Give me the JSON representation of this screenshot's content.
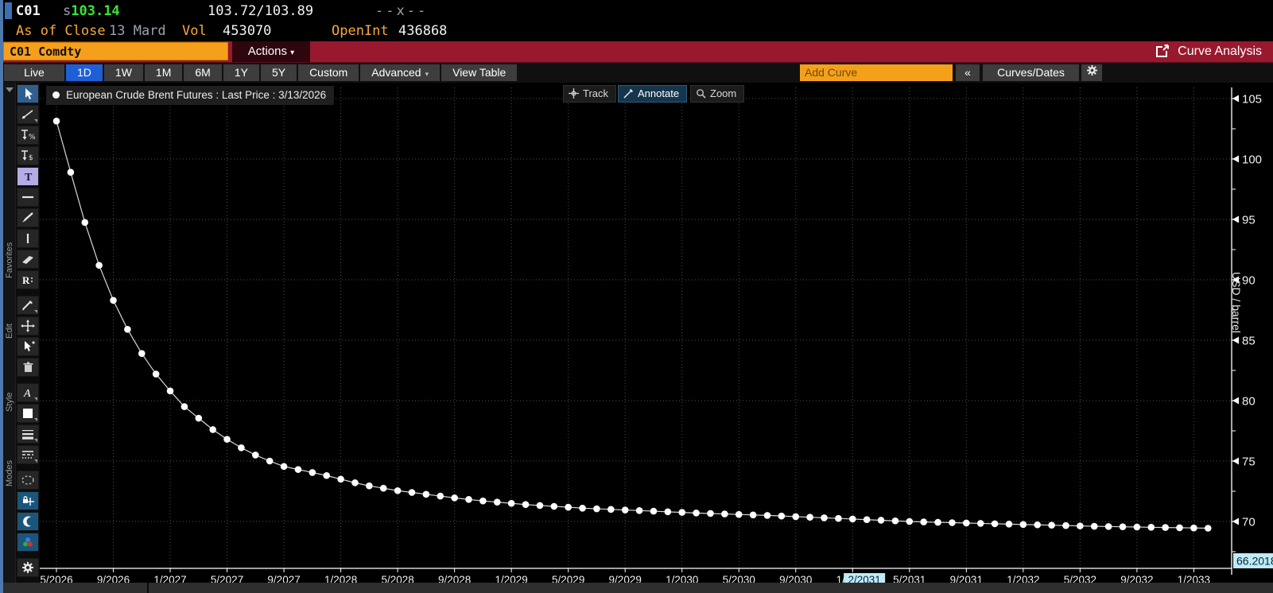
{
  "top_bar": {
    "ticker": "C01",
    "settle_prefix": "s",
    "last_price": "103.14",
    "bid_ask": "103.72/103.89",
    "cross": "--x--",
    "as_of_label": "As of Close",
    "as_of_date": "13 Mard",
    "vol_label": "Vol",
    "vol_value": "453070",
    "open_int_label": "OpenInt",
    "open_int_value": "436868"
  },
  "security_bar": {
    "security_input": "C01 Comdty",
    "actions_label": "Actions",
    "function_title": "Curve Analysis"
  },
  "tab_bar": {
    "tabs": [
      "Live",
      "1D",
      "1W",
      "1M",
      "6M",
      "1Y",
      "5Y",
      "Custom",
      "Advanced",
      "View Table"
    ],
    "selected_tab": "1D",
    "dropdown_tabs": [
      "Advanced"
    ],
    "add_curve_placeholder": "Add Curve",
    "collapse_label": "«",
    "curves_dates_label": "Curves/Dates",
    "gear_icon": "gear-icon"
  },
  "toolbar": {
    "group_labels": [
      "Favorites",
      "Edit",
      "Style",
      "Modes"
    ],
    "tools": [
      {
        "name": "cursor-tool",
        "state": "selected"
      },
      {
        "name": "trendline-tool",
        "dropdown": true
      },
      {
        "name": "price-label-percent-tool"
      },
      {
        "name": "price-label-dollar-tool"
      },
      {
        "name": "text-tool",
        "state": "lavender"
      },
      {
        "name": "horizontal-line-tool"
      },
      {
        "name": "brush-tool"
      },
      {
        "name": "vertical-line-tool"
      },
      {
        "name": "band-tool"
      },
      {
        "name": "regression-tool"
      },
      {
        "name": "pencil-tool",
        "dropdown": true
      },
      {
        "name": "move-tool"
      },
      {
        "name": "select-add-tool"
      },
      {
        "name": "trash-tool"
      },
      {
        "name": "font-tool",
        "dropdown": true
      },
      {
        "name": "color-swatch-tool",
        "dropdown": true
      },
      {
        "name": "line-width-tool",
        "dropdown": true
      },
      {
        "name": "line-style-tool",
        "dropdown": true
      },
      {
        "name": "lasso-tool"
      },
      {
        "name": "snap-mode-tool",
        "state": "mode-on"
      },
      {
        "name": "crescent-mode-tool",
        "state": "mode-on"
      },
      {
        "name": "color-mode-tool",
        "state": "mode-on"
      },
      {
        "name": "settings-tool"
      }
    ]
  },
  "chart": {
    "legend": "European Crude Brent Futures : Last Price : 3/13/2026",
    "overlay_buttons": [
      "Track",
      "Annotate",
      "Zoom"
    ],
    "active_overlay": "Annotate",
    "track_x_value": "2/2031",
    "track_y_value": "66.2018",
    "y_axis_title": "USD / barrel"
  },
  "colors": {
    "amber": "#f7a838",
    "price_green": "#36e636",
    "bar_red": "#98192e",
    "selected_blue": "#1e5fd6",
    "mode_blue": "#1a567c",
    "track_cyan": "#bfeaf6",
    "grid_gray": "#4f4f4f"
  },
  "chart_data": {
    "type": "line",
    "title": "European Crude Brent Futures : Last Price : 3/13/2026",
    "ylabel": "USD / barrel",
    "ylim": [
      66.2,
      106.0
    ],
    "yticks": [
      70,
      75,
      80,
      85,
      90,
      95,
      100,
      105
    ],
    "grid": "dotted",
    "legend_position": "top-left",
    "marker": "circle",
    "x": [
      "5/2026",
      "6/2026",
      "7/2026",
      "8/2026",
      "9/2026",
      "10/2026",
      "11/2026",
      "12/2026",
      "1/2027",
      "2/2027",
      "3/2027",
      "4/2027",
      "5/2027",
      "6/2027",
      "7/2027",
      "8/2027",
      "9/2027",
      "10/2027",
      "11/2027",
      "12/2027",
      "1/2028",
      "2/2028",
      "3/2028",
      "4/2028",
      "5/2028",
      "6/2028",
      "7/2028",
      "8/2028",
      "9/2028",
      "10/2028",
      "11/2028",
      "12/2028",
      "1/2029",
      "2/2029",
      "3/2029",
      "4/2029",
      "5/2029",
      "6/2029",
      "7/2029",
      "8/2029",
      "9/2029",
      "10/2029",
      "11/2029",
      "12/2029",
      "1/2030",
      "2/2030",
      "3/2030",
      "4/2030",
      "5/2030",
      "6/2030",
      "7/2030",
      "8/2030",
      "9/2030",
      "10/2030",
      "11/2030",
      "12/2030",
      "1/2031",
      "2/2031",
      "3/2031",
      "4/2031",
      "5/2031",
      "6/2031",
      "7/2031",
      "8/2031",
      "9/2031",
      "10/2031",
      "11/2031",
      "12/2031",
      "1/2032",
      "2/2032",
      "3/2032",
      "4/2032",
      "5/2032",
      "6/2032",
      "7/2032",
      "8/2032",
      "9/2032",
      "10/2032",
      "11/2032",
      "12/2032",
      "1/2033",
      "2/2033"
    ],
    "values": [
      103.14,
      98.9,
      94.75,
      91.2,
      88.3,
      85.9,
      83.9,
      82.2,
      80.8,
      79.5,
      78.55,
      77.6,
      76.8,
      76.1,
      75.5,
      75.0,
      74.55,
      74.3,
      74.05,
      73.8,
      73.5,
      73.2,
      72.95,
      72.75,
      72.55,
      72.4,
      72.25,
      72.1,
      71.95,
      71.82,
      71.7,
      71.6,
      71.5,
      71.4,
      71.32,
      71.25,
      71.18,
      71.1,
      71.05,
      71.0,
      70.95,
      70.9,
      70.85,
      70.8,
      70.75,
      70.7,
      70.66,
      70.62,
      70.58,
      70.54,
      70.5,
      70.45,
      70.4,
      70.35,
      70.3,
      70.25,
      70.2,
      70.15,
      70.1,
      70.05,
      70.0,
      69.96,
      69.93,
      69.9,
      69.87,
      69.84,
      69.81,
      69.78,
      69.75,
      69.72,
      69.69,
      69.66,
      69.63,
      69.6,
      69.58,
      69.56,
      69.54,
      69.52,
      69.5,
      69.48,
      69.46,
      69.44
    ],
    "xticklabels": [
      "5/2026",
      "9/2026",
      "1/2027",
      "5/2027",
      "9/2027",
      "1/2028",
      "5/2028",
      "9/2028",
      "1/2029",
      "5/2029",
      "9/2029",
      "1/2030",
      "5/2030",
      "9/2030",
      "1/2031",
      "5/2031",
      "9/2031",
      "1/2032",
      "5/2032",
      "9/2032",
      "1/2033"
    ],
    "tracked_point": {
      "x": "2/2031",
      "y": 66.2018
    }
  }
}
